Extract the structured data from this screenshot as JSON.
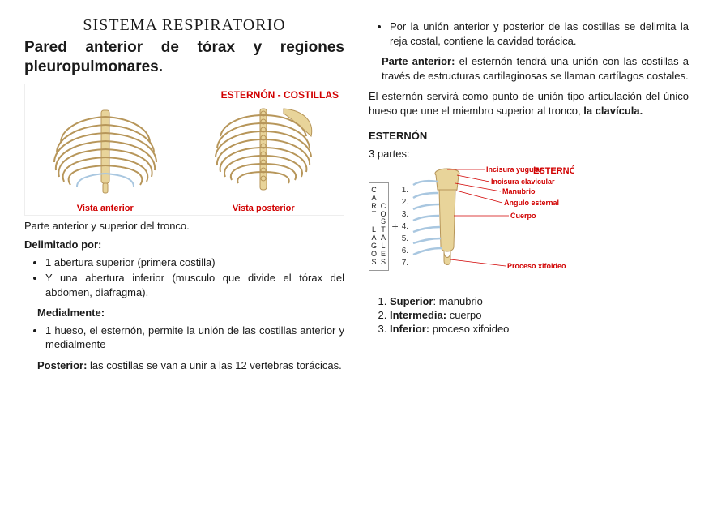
{
  "left": {
    "script_title": "SISTEMA  RESPIRATORIO",
    "headline": "Pared anterior de tórax y regiones pleuropulmonares.",
    "fig1": {
      "title": "ESTERNÓN - COSTILLAS",
      "view_a": "Vista anterior",
      "view_p": "Vista posterior",
      "bone_fill": "#e8d49a",
      "bone_stroke": "#b7965a",
      "cart_stroke": "#a9c7e0"
    },
    "caption_below_fig": "Parte anterior y superior del tronco.",
    "delimitado_label": "Delimitado por:",
    "bullets1": [
      "1 abertura superior (primera costilla)",
      "Y una abertura inferior (musculo que divide el tórax del abdomen, diafragma)."
    ],
    "medial_label": "Medialmente:",
    "bullets2": [
      "1 hueso, el esternón, permite la unión de las costillas anterior y medialmente"
    ],
    "posterior_prefix": "Posterior:",
    "posterior_text": " las costillas se van a unir a las 12 vertebras torácicas."
  },
  "right": {
    "bullets_top": [
      "Por la unión anterior y posterior de las costillas se delimita la reja costal, contiene la cavidad torácica."
    ],
    "parte_ant_prefix": "Parte anterior:",
    "parte_ant_text": " el esternón tendrá una unión con las costillas a través de estructuras cartilaginosas se llaman cartílagos costales.",
    "para2_pre": "El esternón servirá como punto de unión tipo articulación del único hueso que une el miembro superior al tronco, ",
    "para2_bold": "la clavícula.",
    "sternon_head": "ESTERNÓN",
    "partes_label": "3 partes:",
    "fig2": {
      "title": "ESTERNÓN",
      "labels": {
        "inc_yug": "Incisura yugular",
        "inc_clav": "Incisura clavicular",
        "manubrio": "Manubrio",
        "angulo": "Angulo esternal",
        "cuerpo": "Cuerpo",
        "proc_xif": "Proceso xifoideo"
      },
      "cart_word1": "CARTILAGOS",
      "cart_word2": "COSTALES",
      "numbers": [
        "1",
        "2",
        "3",
        "4",
        "5",
        "6",
        "7"
      ],
      "bone_fill": "#e8d49a",
      "bone_stroke": "#b7965a",
      "cart_stroke": "#a9c7e0"
    },
    "ol": [
      {
        "b": "Superior",
        "rest": ": manubrio"
      },
      {
        "b": "Intermedia:",
        "rest": " cuerpo"
      },
      {
        "b": "Inferior:",
        "rest": " proceso xifoideo"
      }
    ]
  }
}
